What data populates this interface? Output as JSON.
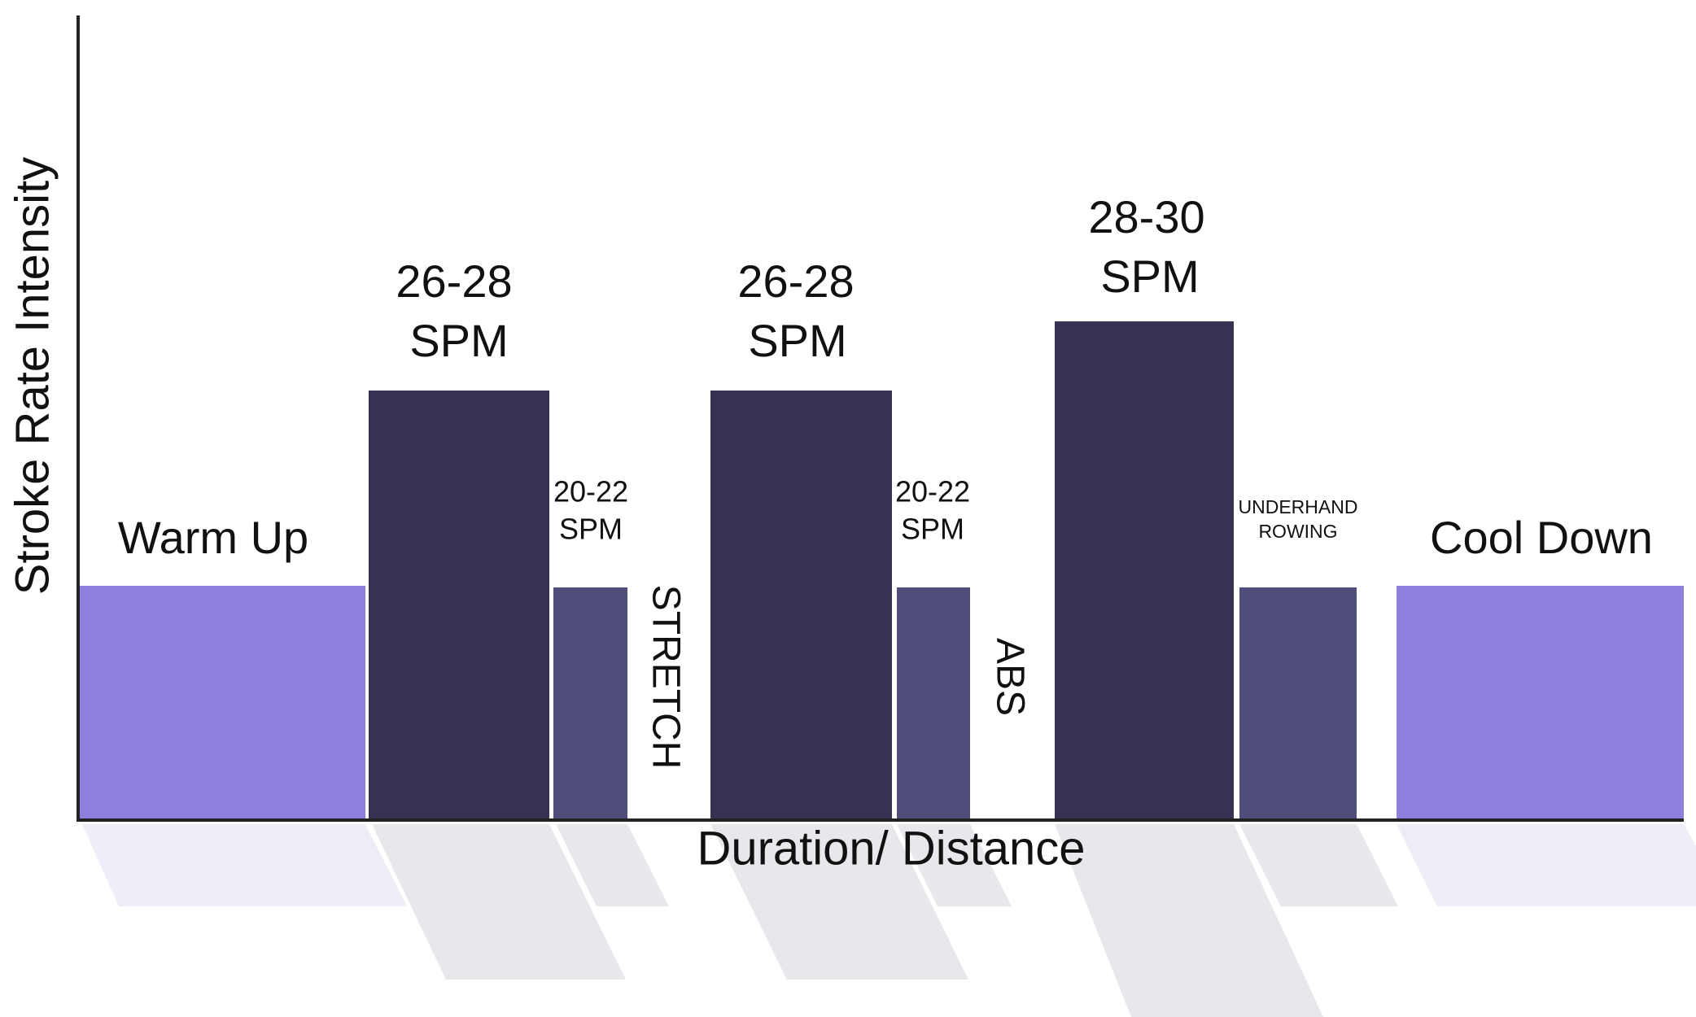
{
  "axes": {
    "y_label": "Stroke Rate Intensity",
    "x_label": "Duration/ Distance"
  },
  "blocks": [
    {
      "lines": [
        "Warm Up"
      ]
    },
    {
      "lines": [
        "26-28",
        "SPM"
      ]
    },
    {
      "lines": [
        "20-22",
        "SPM"
      ]
    },
    {
      "lines": [
        "26-28",
        "SPM"
      ]
    },
    {
      "lines": [
        "20-22",
        "SPM"
      ]
    },
    {
      "lines": [
        "28-30",
        "SPM"
      ]
    },
    {
      "lines": [
        "UNDERHAND",
        "ROWING"
      ]
    },
    {
      "lines": [
        "Cool Down"
      ]
    }
  ],
  "breaks": [
    "STRETCH",
    "ABS"
  ]
}
